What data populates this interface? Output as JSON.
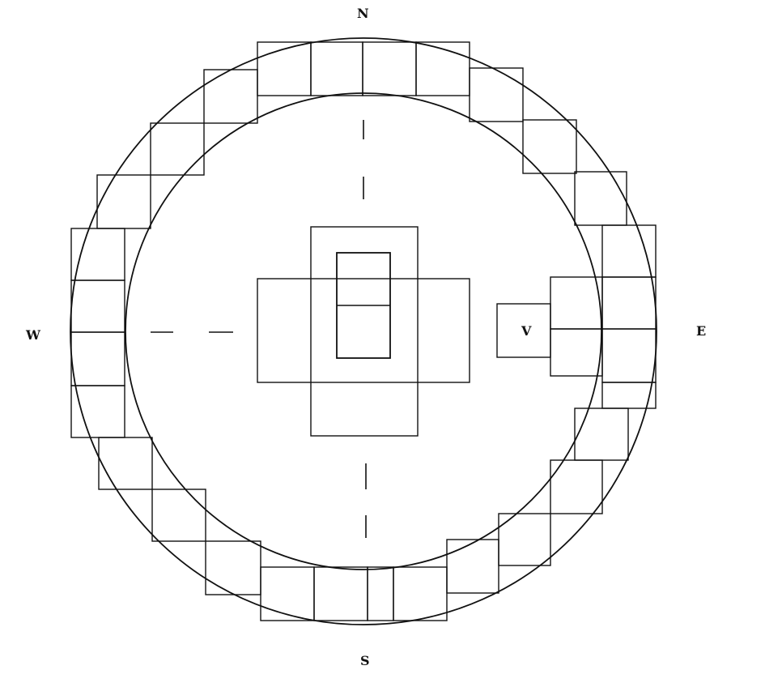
{
  "labels": {
    "north": "N",
    "south": "S",
    "east": "E",
    "west": "W",
    "marker": "V"
  },
  "colors": {
    "ink": "#111111",
    "background": "#ffffff"
  }
}
